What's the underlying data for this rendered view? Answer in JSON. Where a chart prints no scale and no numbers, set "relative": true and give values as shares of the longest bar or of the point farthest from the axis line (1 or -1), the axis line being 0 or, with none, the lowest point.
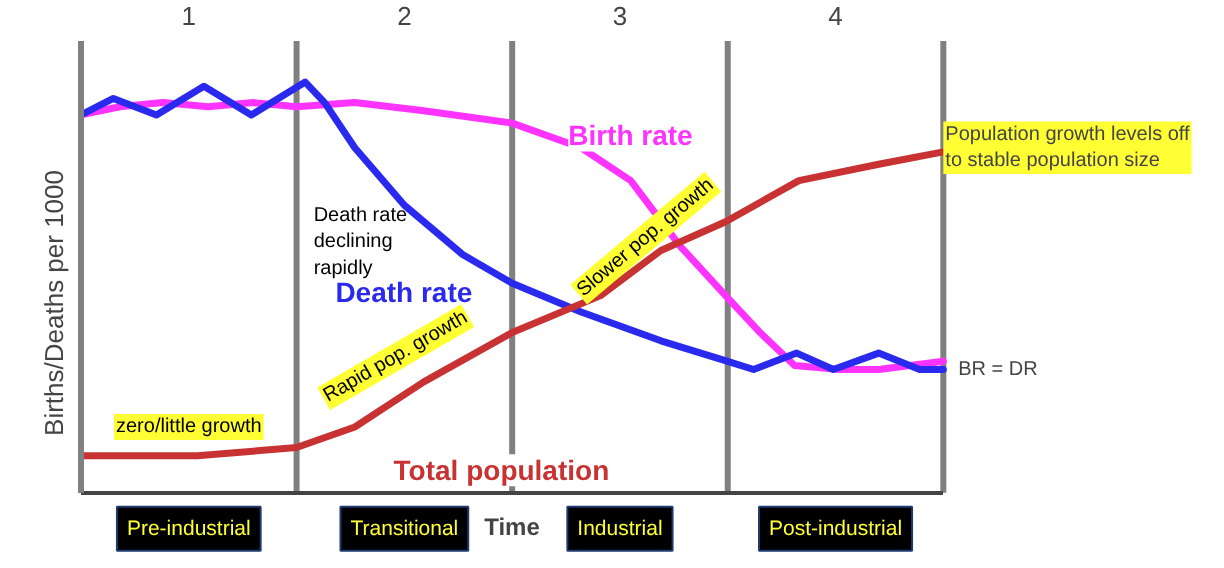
{
  "chart_data": {
    "type": "line",
    "relative": true,
    "xlabel": "Time",
    "ylabel": "Births/Deaths per 1000",
    "xlim": [
      0.5,
      4.5
    ],
    "xticks": [
      1,
      2,
      3,
      4
    ],
    "grid": false,
    "legend": false,
    "line_style": "solid",
    "marker": "none",
    "series": [
      {
        "name": "Birth rate",
        "color": "#ff33ff",
        "x": [
          0.5,
          0.68,
          0.88,
          1.09,
          1.3,
          1.5,
          1.77,
          2.09,
          2.5,
          2.82,
          3.05,
          3.28,
          3.49,
          3.65,
          3.81,
          4.02,
          4.2,
          4.5
        ],
        "values": [
          0.92,
          0.94,
          0.95,
          0.94,
          0.95,
          0.94,
          0.95,
          0.93,
          0.9,
          0.84,
          0.76,
          0.6,
          0.48,
          0.39,
          0.31,
          0.3,
          0.3,
          0.32
        ]
      },
      {
        "name": "Death rate",
        "color": "#2a2aee",
        "x": [
          0.5,
          0.65,
          0.85,
          1.07,
          1.29,
          1.54,
          1.63,
          1.77,
          2.0,
          2.27,
          2.5,
          2.82,
          3.19,
          3.5,
          3.62,
          3.82,
          3.99,
          4.2,
          4.39,
          4.5
        ],
        "values": [
          0.92,
          0.96,
          0.92,
          0.99,
          0.92,
          1.0,
          0.95,
          0.84,
          0.7,
          0.58,
          0.51,
          0.44,
          0.37,
          0.32,
          0.3,
          0.34,
          0.3,
          0.34,
          0.3,
          0.3
        ]
      },
      {
        "name": "Total population",
        "color": "#c83232",
        "x": [
          0.5,
          1.04,
          1.5,
          1.77,
          2.09,
          2.5,
          2.91,
          3.19,
          3.49,
          3.83,
          4.2,
          4.5
        ],
        "values": [
          0.09,
          0.09,
          0.11,
          0.16,
          0.27,
          0.39,
          0.48,
          0.59,
          0.66,
          0.76,
          0.8,
          0.83
        ]
      }
    ],
    "ref_lines": [
      {
        "axis": "x",
        "value": 1.5,
        "label": null,
        "color": "#808080"
      },
      {
        "axis": "x",
        "value": 2.5,
        "label": null,
        "color": "#808080"
      },
      {
        "axis": "x",
        "value": 3.5,
        "label": null,
        "color": "#808080"
      },
      {
        "axis": "x",
        "value": 4.5,
        "label": null,
        "color": "#808080"
      }
    ],
    "annotations": [
      "zero/little growth",
      "Rapid pop. growth",
      "Slower pop. growth",
      {
        "text": "Population growth levels off\nto stable population size",
        "x": 4.5,
        "y": 0.84
      },
      "Death rate\ndeclining\nrapidly",
      {
        "text": "BR = DR",
        "x": 4.56,
        "y": 0.3
      },
      "Pre-industrial",
      "Transitional",
      "Industrial",
      "Post-industrial"
    ]
  }
}
